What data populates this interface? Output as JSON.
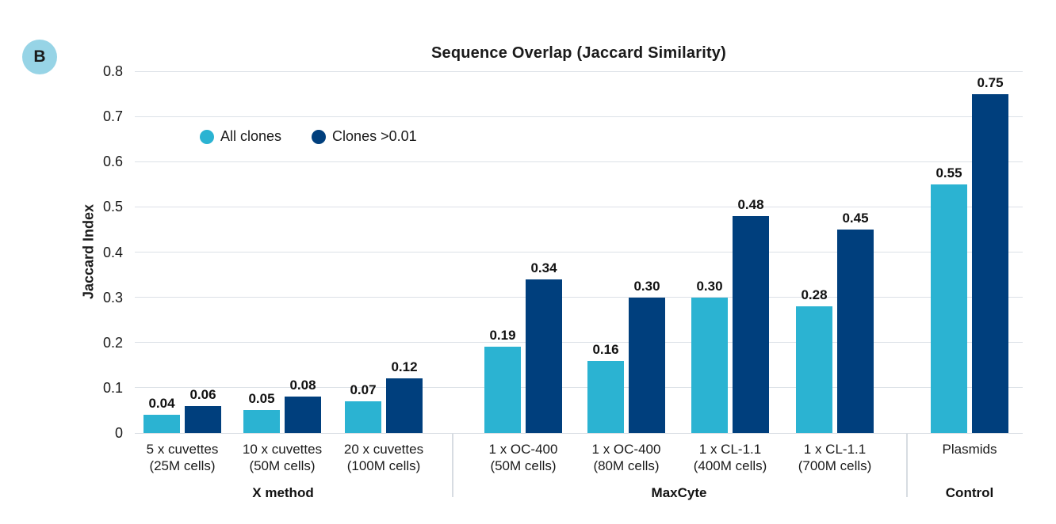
{
  "panel_label": "B",
  "colors": {
    "all_clones": "#2BB3D2",
    "clones_gt_001": "#003F7D",
    "panel_badge_bg": "#97D4E6",
    "gridline": "#DCE1E7",
    "axis_line": "#D7DCE2",
    "separator": "#D7DCE2",
    "text": "#1A1A1A"
  },
  "chart_data": {
    "type": "bar",
    "title": "Sequence Overlap (Jaccard Similarity)",
    "xlabel": "",
    "ylabel": "Jaccard Index",
    "ylim": [
      0,
      0.8
    ],
    "ytick_labels": [
      "0",
      "0.1",
      "0.2",
      "0.3",
      "0.4",
      "0.5",
      "0.6",
      "0.7",
      "0.8"
    ],
    "grid": true,
    "legend_position": "inside-top-left",
    "value_labels_shown": true,
    "categories": [
      [
        "5 x cuvettes",
        "(25M cells)"
      ],
      [
        "10 x cuvettes",
        "(50M cells)"
      ],
      [
        "20 x cuvettes",
        "(100M cells)"
      ],
      [
        "1 x OC-400",
        "(50M cells)"
      ],
      [
        "1 x OC-400",
        "(80M cells)"
      ],
      [
        "1 x CL-1.1",
        "(400M cells)"
      ],
      [
        "1 x CL-1.1",
        "(700M cells)"
      ],
      [
        "Plasmids"
      ]
    ],
    "series": [
      {
        "name": "All clones",
        "color": "#2BB3D2",
        "values": [
          0.04,
          0.05,
          0.07,
          0.19,
          0.16,
          0.3,
          0.28,
          0.55
        ]
      },
      {
        "name": "Clones >0.01",
        "color": "#003F7D",
        "values": [
          0.06,
          0.08,
          0.12,
          0.34,
          0.3,
          0.48,
          0.45,
          0.75
        ]
      }
    ],
    "groups": [
      {
        "label": "X method",
        "category_indices": [
          0,
          1,
          2
        ]
      },
      {
        "label": "MaxCyte",
        "category_indices": [
          3,
          4,
          5,
          6
        ]
      },
      {
        "label": "Control",
        "category_indices": [
          7
        ]
      }
    ]
  }
}
